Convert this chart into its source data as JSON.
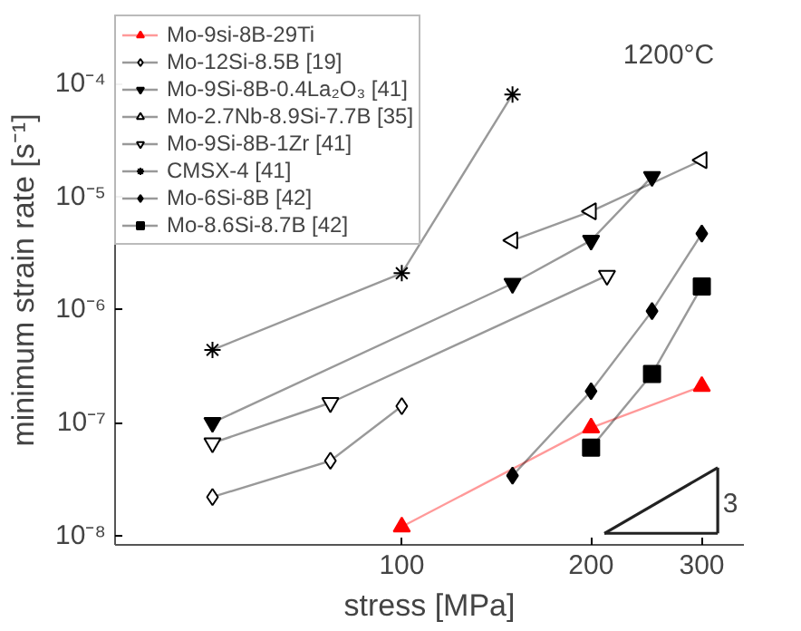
{
  "chart_data": {
    "type": "line",
    "xlabel": "stress [MPa]",
    "ylabel": "minimum strain rate [s⁻¹]",
    "annotations": [
      "1200°C",
      "3"
    ],
    "log": "xy",
    "grid": false,
    "legend": "top left",
    "line_style": "solid",
    "xlim": [
      35,
      350
    ],
    "ylim": [
      8.3e-09,
      0.0004
    ],
    "xticks": [
      100,
      200,
      300
    ],
    "yticks": [
      {
        "value": 1e-08,
        "label": "10⁻⁸"
      },
      {
        "value": 1e-07,
        "label": "10⁻⁷"
      },
      {
        "value": 1e-06,
        "label": "10⁻⁶"
      },
      {
        "value": 1e-05,
        "label": "10⁻⁵"
      },
      {
        "value": 0.0001,
        "label": "10⁻⁴"
      }
    ],
    "series": [
      {
        "name": "Mo-9si-8B-29Ti",
        "color": "#ff0000",
        "marker": "triangle",
        "x": [
          100,
          200,
          300
        ],
        "values": [
          1.2e-08,
          9e-08,
          2.1e-07
        ]
      },
      {
        "name": "Mo-12Si-8.5B [19]",
        "color": "#000000",
        "marker": "diamond-open",
        "x": [
          50,
          77,
          100
        ],
        "values": [
          2.2e-08,
          4.6e-08,
          1.4e-07
        ]
      },
      {
        "name": "Mo-9Si-8B-0.4La₂O₃ [41]",
        "color": "#000000",
        "marker": "triangle-down",
        "x": [
          50,
          150,
          200,
          250
        ],
        "values": [
          1e-07,
          1.7e-06,
          4.1e-06,
          1.5e-05
        ]
      },
      {
        "name": "Mo-2.7Nb-8.9Si-7.7B [35]",
        "color": "#000000",
        "marker": "triangle-left-open",
        "x": [
          150,
          200,
          300
        ],
        "values": [
          4.1e-06,
          7.4e-06,
          2.1e-05
        ]
      },
      {
        "name": "Mo-9Si-8B-1Zr [41]",
        "color": "#000000",
        "marker": "triangle-down-open",
        "x": [
          50,
          77,
          212
        ],
        "values": [
          6.6e-08,
          1.5e-07,
          2e-06
        ]
      },
      {
        "name": "CMSX-4 [41]",
        "color": "#000000",
        "marker": "cross",
        "x": [
          50,
          100,
          150
        ],
        "values": [
          4.4e-07,
          2.1e-06,
          8e-05
        ]
      },
      {
        "name": "Mo-6Si-8B [42]",
        "color": "#000000",
        "marker": "diamond",
        "x": [
          150,
          200,
          250,
          300
        ],
        "values": [
          3.4e-08,
          1.9e-07,
          9.7e-07,
          4.7e-06
        ]
      },
      {
        "name": "Mo-8.6Si-8.7B [42]",
        "color": "#000000",
        "marker": "square",
        "x": [
          200,
          250,
          300
        ],
        "values": [
          6e-08,
          2.7e-07,
          1.6e-06
        ]
      },
      {
        "color": "#222222",
        "marker": "none",
        "x": [
          210,
          318
        ],
        "values": [
          1.05e-08,
          4e-08
        ],
        "errors": [
          null,
          [
            1.05e-08,
            4e-08
          ]
        ]
      },
      {
        "color": "#222222",
        "marker": "none",
        "x": [
          210,
          318
        ],
        "values": [
          1.05e-08,
          1.05e-08
        ]
      }
    ]
  }
}
